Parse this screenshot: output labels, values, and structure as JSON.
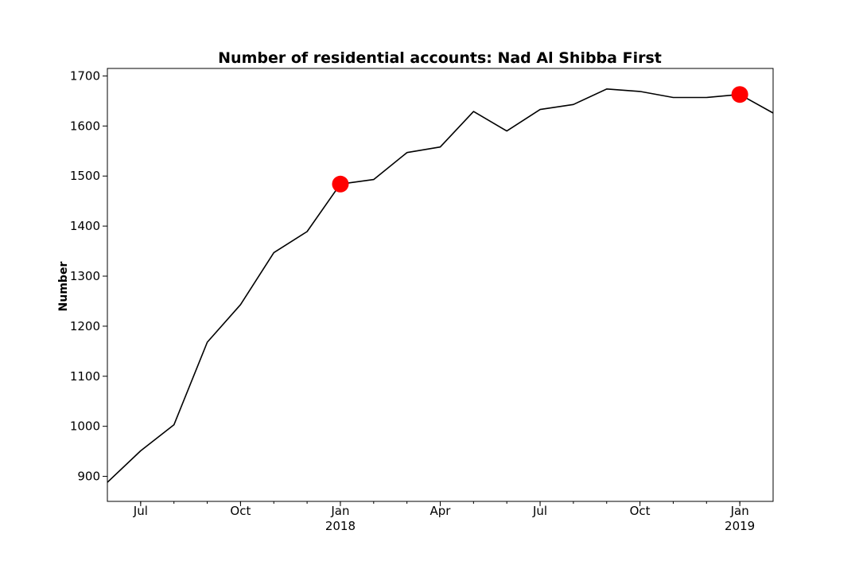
{
  "chart_data": {
    "type": "line",
    "title": "Number of residential accounts: Nad Al Shibba First",
    "xlabel": "",
    "ylabel": "Number",
    "xlim": [
      "2017-06",
      "2019-02"
    ],
    "ylim": [
      850,
      1715
    ],
    "yticks": [
      900,
      1000,
      1100,
      1200,
      1300,
      1400,
      1500,
      1600,
      1700
    ],
    "xticks": [
      {
        "x": "2017-07",
        "label": "Jul",
        "sublabel": ""
      },
      {
        "x": "2017-10",
        "label": "Oct",
        "sublabel": ""
      },
      {
        "x": "2018-01",
        "label": "Jan",
        "sublabel": "2018"
      },
      {
        "x": "2018-04",
        "label": "Apr",
        "sublabel": ""
      },
      {
        "x": "2018-07",
        "label": "Jul",
        "sublabel": ""
      },
      {
        "x": "2018-10",
        "label": "Oct",
        "sublabel": ""
      },
      {
        "x": "2019-01",
        "label": "Jan",
        "sublabel": "2019"
      }
    ],
    "grid": false,
    "series": [
      {
        "color": "#000000",
        "x": [
          "2017-06",
          "2017-07",
          "2017-08",
          "2017-09",
          "2017-10",
          "2017-11",
          "2017-12",
          "2018-01",
          "2018-02",
          "2018-03",
          "2018-04",
          "2018-05",
          "2018-06",
          "2018-07",
          "2018-08",
          "2018-09",
          "2018-10",
          "2018-11",
          "2018-12",
          "2019-01",
          "2019-02"
        ],
        "values": [
          888,
          951,
          1003,
          1168,
          1243,
          1347,
          1389,
          1484,
          1493,
          1547,
          1558,
          1629,
          1590,
          1633,
          1643,
          1674,
          1669,
          1657,
          1657,
          1663,
          1626
        ]
      }
    ],
    "highlights": {
      "color": "#ff0000",
      "x": [
        "2018-01",
        "2019-01"
      ],
      "values": [
        1484,
        1663
      ]
    }
  }
}
